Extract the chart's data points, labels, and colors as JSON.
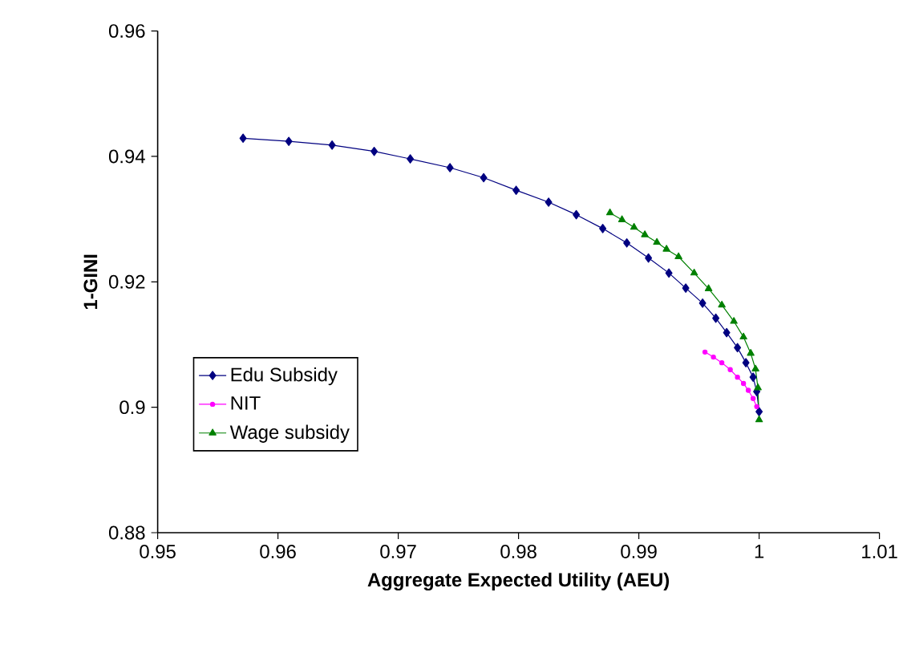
{
  "chart_data": {
    "type": "line",
    "xlabel": "Aggregate Expected Utility (AEU)",
    "ylabel": "1-GINI",
    "xlim": [
      0.95,
      1.01
    ],
    "xticks": [
      0.95,
      0.96,
      0.97,
      0.98,
      0.99,
      1,
      1.01
    ],
    "ylim": [
      0.88,
      0.96
    ],
    "yticks": [
      0.88,
      0.9,
      0.92,
      0.94,
      0.96
    ],
    "grid": false,
    "legend": "bottom left",
    "series": [
      {
        "name": "Edu Subsidy",
        "color": "#000080",
        "marker": "diamond",
        "x": [
          0.9571,
          0.9609,
          0.9645,
          0.968,
          0.971,
          0.9743,
          0.9771,
          0.9798,
          0.9825,
          0.9848,
          0.987,
          0.989,
          0.9908,
          0.9925,
          0.9939,
          0.9953,
          0.9964,
          0.9973,
          0.9982,
          0.9989,
          0.9995,
          0.9998,
          1.0
        ],
        "values": [
          0.9429,
          0.9424,
          0.9418,
          0.9408,
          0.9396,
          0.9382,
          0.9366,
          0.9346,
          0.9327,
          0.9307,
          0.9285,
          0.9262,
          0.9238,
          0.9214,
          0.919,
          0.9166,
          0.9142,
          0.9119,
          0.9095,
          0.9071,
          0.9048,
          0.9025,
          0.8993
        ]
      },
      {
        "name": "NIT",
        "color": "#ff00ff",
        "marker": "circle",
        "x": [
          0.9955,
          0.9962,
          0.9969,
          0.9976,
          0.9982,
          0.9987,
          0.9991,
          0.9995,
          0.9998
        ],
        "values": [
          0.9088,
          0.908,
          0.9071,
          0.906,
          0.9048,
          0.9038,
          0.9027,
          0.9014,
          0.9001
        ]
      },
      {
        "name": "Wage subsidy",
        "color": "#008000",
        "marker": "triangle",
        "x": [
          0.9876,
          0.9886,
          0.9896,
          0.9905,
          0.9915,
          0.9923,
          0.9933,
          0.9946,
          0.9958,
          0.9969,
          0.9979,
          0.9987,
          0.9993,
          0.9997,
          0.9999,
          1.0
        ],
        "values": [
          0.931,
          0.9299,
          0.9287,
          0.9275,
          0.9263,
          0.9252,
          0.924,
          0.9214,
          0.9189,
          0.9163,
          0.9137,
          0.9112,
          0.9086,
          0.9061,
          0.9031,
          0.898
        ]
      }
    ]
  }
}
